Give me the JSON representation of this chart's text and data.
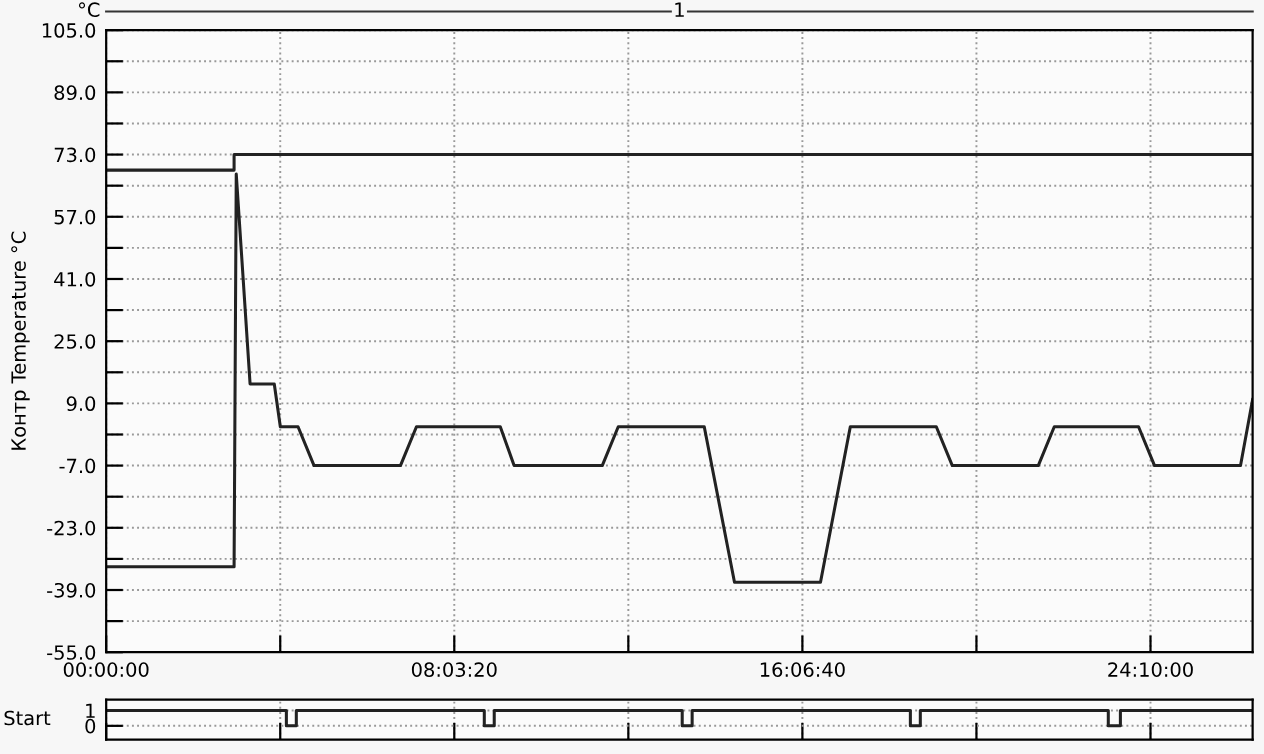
{
  "chart_data": [
    {
      "type": "line",
      "ylabel": "Контр Temperature °C",
      "annotations": [
        "°C",
        "1"
      ],
      "grid": true,
      "line_style": "solid",
      "marker": "none",
      "xlim": [
        0,
        26.53
      ],
      "ylim": [
        -55,
        105
      ],
      "xticks": [
        {
          "value": 0,
          "label": "00:00:00"
        },
        {
          "value": 4.0278,
          "label": null
        },
        {
          "value": 8.0556,
          "label": "08:03:20"
        },
        {
          "value": 12.0833,
          "label": null
        },
        {
          "value": 16.1111,
          "label": "16:06:40"
        },
        {
          "value": 20.1389,
          "label": null
        },
        {
          "value": 24.1667,
          "label": "24:10:00"
        }
      ],
      "yticks": [
        {
          "value": -55,
          "label": "-55.0"
        },
        {
          "value": -47,
          "label": null
        },
        {
          "value": -39,
          "label": "-39.0"
        },
        {
          "value": -31,
          "label": null
        },
        {
          "value": -23,
          "label": "-23.0"
        },
        {
          "value": -15,
          "label": null
        },
        {
          "value": -7,
          "label": "-7.0"
        },
        {
          "value": 1,
          "label": null
        },
        {
          "value": 9,
          "label": "9.0"
        },
        {
          "value": 17,
          "label": null
        },
        {
          "value": 25,
          "label": "25.0"
        },
        {
          "value": 33,
          "label": null
        },
        {
          "value": 41,
          "label": "41.0"
        },
        {
          "value": 49,
          "label": null
        },
        {
          "value": 57,
          "label": "57.0"
        },
        {
          "value": 65,
          "label": null
        },
        {
          "value": 73,
          "label": "73.0"
        },
        {
          "value": 81,
          "label": null
        },
        {
          "value": 89,
          "label": "89.0"
        },
        {
          "value": 97,
          "label": null
        },
        {
          "value": 105,
          "label": "105.0"
        }
      ],
      "series": [
        {
          "color": "#222222",
          "x": [
            0,
            2.96,
            2.96,
            26.53
          ],
          "values": [
            69,
            69,
            73,
            73
          ]
        },
        {
          "color": "#222222",
          "x": [
            0,
            2.96,
            3.01,
            3.33,
            3.89,
            4.03,
            4.44,
            4.81,
            6.81,
            7.18,
            9.12,
            9.44,
            11.48,
            11.85,
            13.84,
            14.54,
            16.53,
            17.22,
            19.21,
            19.58,
            21.57,
            21.94,
            23.89,
            24.26,
            26.25,
            26.53
          ],
          "values": [
            -33,
            -33,
            68,
            14,
            14,
            3,
            3,
            -7,
            -7,
            3,
            3,
            -7,
            -7,
            3,
            3,
            -37,
            -37,
            3,
            3,
            -7,
            -7,
            3,
            3,
            -7,
            -7,
            10
          ]
        }
      ]
    },
    {
      "type": "line",
      "ylabel": "Start",
      "grid": true,
      "line_style": "solid",
      "marker": "none",
      "tick_labels": "y",
      "xlim": [
        0,
        26.53
      ],
      "ylim": [
        -0.9,
        1.7
      ],
      "yticks": [
        0,
        1
      ],
      "xticks": [
        {
          "value": 0,
          "label": null
        },
        {
          "value": 4.0278,
          "label": null
        },
        {
          "value": 8.0556,
          "label": null
        },
        {
          "value": 12.0833,
          "label": null
        },
        {
          "value": 16.1111,
          "label": null
        },
        {
          "value": 20.1389,
          "label": null
        },
        {
          "value": 24.1667,
          "label": null
        }
      ],
      "series": [
        {
          "color": "#222222",
          "x": [
            0,
            4.17,
            4.17,
            4.4,
            4.4,
            8.75,
            8.75,
            8.98,
            8.98,
            13.33,
            13.33,
            13.56,
            13.56,
            18.61,
            18.61,
            18.84,
            18.84,
            23.19,
            23.19,
            23.47,
            23.47,
            26.53
          ],
          "values": [
            1,
            1,
            0,
            0,
            1,
            1,
            0,
            0,
            1,
            1,
            0,
            0,
            1,
            1,
            0,
            0,
            1,
            1,
            0,
            0,
            1,
            1
          ]
        }
      ]
    }
  ]
}
